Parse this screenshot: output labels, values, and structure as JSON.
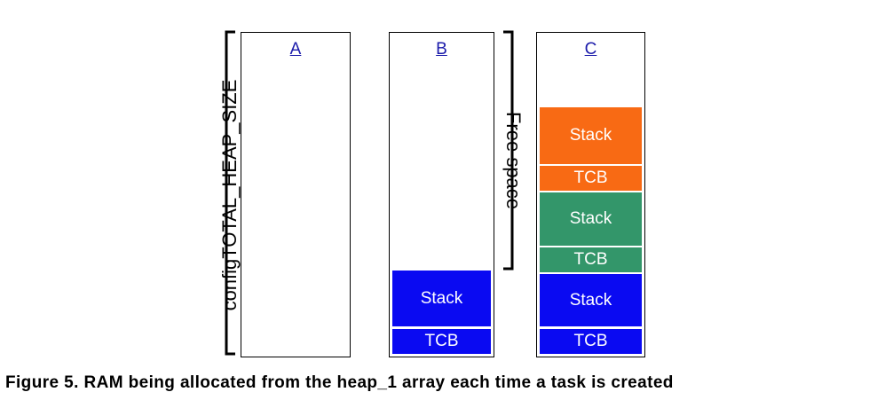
{
  "labels": {
    "total_heap": "configTOTAL_HEAP_SIZE",
    "free_space": "Free space"
  },
  "columns": [
    {
      "label": "A",
      "blocks": []
    },
    {
      "label": "B",
      "blocks": [
        {
          "label": "Stack",
          "color": "#0a0af2"
        },
        {
          "label": "TCB",
          "color": "#0a0af2"
        }
      ]
    },
    {
      "label": "C",
      "blocks": [
        {
          "label": "Stack",
          "color": "#f86a14"
        },
        {
          "label": "TCB",
          "color": "#f86a14"
        },
        {
          "label": "Stack",
          "color": "#33966a"
        },
        {
          "label": "TCB",
          "color": "#33966a"
        },
        {
          "label": "Stack",
          "color": "#0a0af2"
        },
        {
          "label": "TCB",
          "color": "#0a0af2"
        }
      ]
    }
  ],
  "caption": "Figure 5.  RAM being allocated from the heap_1 array each time a task is created"
}
